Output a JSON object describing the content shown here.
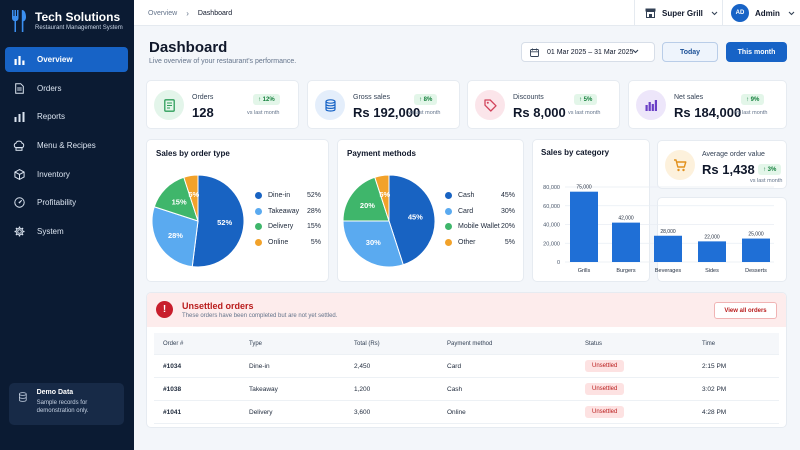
{
  "brand": {
    "name": "Tech Solutions",
    "subtitle": "Restaurant Management System"
  },
  "sidebar": {
    "items": [
      {
        "label": "Overview",
        "icon": "chart-bar-icon",
        "active": true
      },
      {
        "label": "Orders",
        "icon": "document-icon"
      },
      {
        "label": "Reports",
        "icon": "reports-icon"
      },
      {
        "label": "Menu & Recipes",
        "icon": "chef-hat-icon"
      },
      {
        "label": "Inventory",
        "icon": "box-icon"
      },
      {
        "label": "Profitability",
        "icon": "gauge-icon"
      },
      {
        "label": "System",
        "icon": "gear-icon"
      }
    ],
    "demo": {
      "title": "Demo Data",
      "text": "Sample records for demonstration only."
    }
  },
  "topbar": {
    "breadcrumb": [
      "Overview",
      "Dashboard"
    ],
    "store": "Super Grill",
    "user": {
      "initials": "AD",
      "name": "Admin"
    }
  },
  "header": {
    "title": "Dashboard",
    "subtitle": "Live overview of your restaurant's performance.",
    "date_range": "01 Mar 2025 – 31 Mar 2025",
    "today_label": "Today",
    "month_label": "This month"
  },
  "kpis": [
    {
      "label": "Orders",
      "value": "128",
      "change": "12%",
      "vs": "vs last month",
      "icon": "receipt-icon",
      "color": "#2e9e5b",
      "bg": "#e3f5ea"
    },
    {
      "label": "Gross sales",
      "value": "Rs 192,000",
      "change": "8%",
      "vs": "vs last month",
      "icon": "coins-icon",
      "color": "#1763c6",
      "bg": "#e4eefb"
    },
    {
      "label": "Discounts",
      "value": "Rs 8,000",
      "change": "5%",
      "vs": "vs last month",
      "icon": "tag-icon",
      "color": "#d1435b",
      "bg": "#fbe5ea"
    },
    {
      "label": "Net sales",
      "value": "Rs 184,000",
      "change": "9%",
      "vs": "vs last month",
      "icon": "bar-chart-icon",
      "color": "#6a3fc6",
      "bg": "#ede6fa"
    }
  ],
  "avg_order": {
    "label": "Average order value",
    "value": "Rs 1,438",
    "change": "3%",
    "vs": "vs last month",
    "icon": "cart-icon"
  },
  "charts": {
    "order_type_title": "Sales by order type",
    "payment_title": "Payment methods",
    "category_title": "Sales by category"
  },
  "chart_data": [
    {
      "type": "pie",
      "title": "Sales by order type",
      "categories": [
        "Dine-in",
        "Takeaway",
        "Delivery",
        "Online"
      ],
      "values": [
        52,
        28,
        15,
        5
      ],
      "labels": [
        "52%",
        "28%",
        "15%",
        "5%"
      ],
      "colors": [
        "#1863c2",
        "#5aaaf0",
        "#3fb66b",
        "#f2a22a"
      ]
    },
    {
      "type": "pie",
      "title": "Payment methods",
      "categories": [
        "Cash",
        "Card",
        "Mobile Wallet",
        "Other"
      ],
      "values": [
        45,
        30,
        20,
        5
      ],
      "labels": [
        "45%",
        "30%",
        "20%",
        "5%"
      ],
      "colors": [
        "#1863c2",
        "#5aaaf0",
        "#3fb66b",
        "#f2a22a"
      ]
    },
    {
      "type": "bar",
      "title": "Sales by category",
      "categories": [
        "Grills",
        "Burgers",
        "Beverages",
        "Sides",
        "Desserts"
      ],
      "values": [
        75000,
        42000,
        28000,
        22000,
        25000
      ],
      "data_labels": [
        "75,000",
        "42,000",
        "28,000",
        "22,000",
        "25,000"
      ],
      "ylim": [
        0,
        80000
      ],
      "yticks": [
        "0",
        "20,000",
        "40,000",
        "60,000",
        "80,000"
      ],
      "color": "#1f6fd6",
      "grid": true
    }
  ],
  "unsettled": {
    "title": "Unsettled orders",
    "subtitle": "These orders have been completed but are not yet settled.",
    "view_all": "View all orders",
    "columns": [
      "Order #",
      "Type",
      "Total (Rs)",
      "Payment method",
      "Status",
      "Time"
    ],
    "rows": [
      [
        "#1034",
        "Dine-in",
        "2,450",
        "Card",
        "Unsettled",
        "2:15 PM"
      ],
      [
        "#1038",
        "Takeaway",
        "1,200",
        "Cash",
        "Unsettled",
        "3:02 PM"
      ],
      [
        "#1041",
        "Delivery",
        "3,600",
        "Online",
        "Unsettled",
        "4:28 PM"
      ]
    ]
  }
}
